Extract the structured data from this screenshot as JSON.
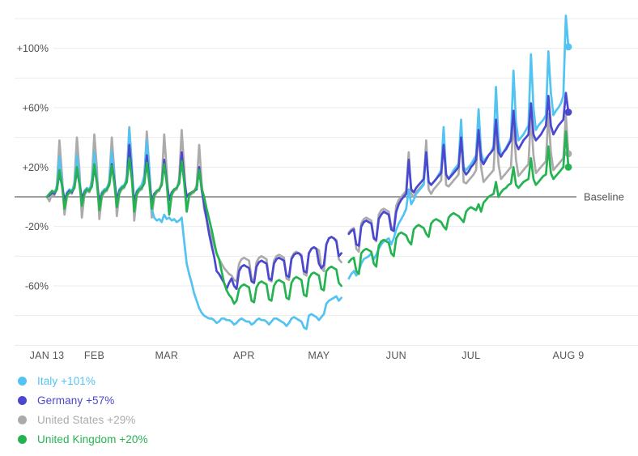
{
  "chart_data": {
    "type": "line",
    "title": "",
    "x_axis": {
      "unit": "days since Jan 13",
      "total_days": 209,
      "ticks": [
        {
          "day": 0,
          "label": "JAN 13"
        },
        {
          "day": 19,
          "label": "FEB"
        },
        {
          "day": 48,
          "label": "MAR"
        },
        {
          "day": 79,
          "label": "APR"
        },
        {
          "day": 109,
          "label": "MAY"
        },
        {
          "day": 140,
          "label": "JUN"
        },
        {
          "day": 170,
          "label": "JUL"
        },
        {
          "day": 209,
          "label": "AUG 9"
        }
      ]
    },
    "y_axis": {
      "unit": "%",
      "min": -100,
      "max": 120,
      "grid_step": 20,
      "labeled_ticks": [
        100,
        60,
        20,
        -20,
        -60
      ]
    },
    "baseline": {
      "value": 0,
      "label": "Baseline"
    },
    "grid_color": "#ebebeb",
    "baseline_color": "#9e9e9e",
    "axis_text_color": "#555555",
    "series": [
      {
        "id": "united-states",
        "name": "United States",
        "end_label": "United States +29%",
        "final_value": 29,
        "color": "#ababab",
        "values": [
          0,
          -3,
          2,
          1,
          8,
          38,
          15,
          -12,
          0,
          3,
          2,
          10,
          40,
          18,
          -14,
          1,
          4,
          3,
          12,
          42,
          20,
          -15,
          0,
          3,
          4,
          11,
          40,
          17,
          -13,
          2,
          5,
          6,
          14,
          47,
          22,
          -16,
          1,
          4,
          5,
          12,
          44,
          20,
          -14,
          0,
          3,
          4,
          10,
          42,
          18,
          -12,
          1,
          4,
          5,
          12,
          45,
          20,
          -10,
          0,
          2,
          3,
          8,
          35,
          10,
          -8,
          -15,
          -22,
          -28,
          -33,
          -38,
          -42,
          -45,
          -48,
          -50,
          -52,
          -53,
          -56,
          -57,
          -45,
          -42,
          -41,
          -42,
          -43,
          -55,
          -57,
          -44,
          -41,
          -40,
          -41,
          -42,
          -56,
          -57,
          -43,
          -40,
          -39,
          -40,
          -41,
          -55,
          -56,
          -41,
          -38,
          -37,
          -38,
          -39,
          -52,
          -53,
          -38,
          -35,
          -34,
          -35,
          -36,
          -48,
          -50,
          -32,
          -28,
          -27,
          -28,
          -29,
          -42,
          -44,
          null,
          null,
          -24,
          -22,
          -21,
          -35,
          -37,
          -18,
          -15,
          -14,
          -15,
          -16,
          -28,
          -30,
          -12,
          -9,
          -8,
          -9,
          -10,
          -20,
          -22,
          -6,
          -2,
          0,
          2,
          4,
          30,
          2,
          0,
          3,
          5,
          7,
          9,
          38,
          5,
          2,
          5,
          7,
          9,
          11,
          45,
          8,
          7,
          9,
          11,
          13,
          15,
          48,
          10,
          9,
          11,
          13,
          15,
          18,
          46,
          20,
          10,
          12,
          14,
          16,
          18,
          48,
          22,
          12,
          14,
          16,
          18,
          20,
          52,
          25,
          14,
          16,
          18,
          20,
          22,
          55,
          28,
          16,
          18,
          20,
          22,
          24,
          56,
          30,
          18,
          20,
          22,
          24,
          26,
          55,
          29
        ]
      },
      {
        "id": "italy",
        "name": "Italy",
        "end_label": "Italy +101%",
        "final_value": 101,
        "color": "#53c3f1",
        "values": [
          0,
          2,
          4,
          3,
          6,
          27,
          10,
          -4,
          3,
          5,
          4,
          8,
          28,
          12,
          -3,
          4,
          6,
          5,
          9,
          30,
          11,
          -5,
          3,
          5,
          6,
          10,
          31,
          13,
          -4,
          5,
          7,
          8,
          12,
          46,
          20,
          -6,
          4,
          6,
          8,
          14,
          38,
          20,
          -8,
          -14,
          -16,
          -15,
          -17,
          -12,
          -15,
          -14,
          -16,
          -15,
          -17,
          -16,
          -14,
          -30,
          -45,
          -52,
          -58,
          -65,
          -70,
          -75,
          -78,
          -80,
          -81,
          -82,
          -82,
          -83,
          -85,
          -84,
          -82,
          -82,
          -83,
          -83,
          -84,
          -86,
          -85,
          -83,
          -82,
          -83,
          -84,
          -84,
          -86,
          -85,
          -83,
          -82,
          -83,
          -83,
          -84,
          -86,
          -84,
          -82,
          -82,
          -83,
          -84,
          -85,
          -87,
          -85,
          -82,
          -81,
          -82,
          -83,
          -84,
          -88,
          -89,
          -80,
          -79,
          -80,
          -81,
          -83,
          -81,
          -79,
          -72,
          -70,
          -69,
          -68,
          -67,
          -70,
          -68,
          null,
          null,
          -55,
          -52,
          -50,
          -53,
          -50,
          -45,
          -42,
          -41,
          -40,
          -38,
          -42,
          -39,
          -35,
          -32,
          -30,
          -29,
          -28,
          -32,
          -28,
          -22,
          -18,
          -15,
          -12,
          -8,
          5,
          -5,
          -2,
          2,
          4,
          6,
          8,
          30,
          10,
          8,
          10,
          12,
          15,
          18,
          47,
          15,
          12,
          15,
          18,
          20,
          22,
          52,
          20,
          18,
          20,
          22,
          25,
          28,
          59,
          30,
          24,
          26,
          28,
          30,
          34,
          74,
          38,
          28,
          30,
          33,
          36,
          40,
          85,
          50,
          38,
          40,
          42,
          45,
          48,
          96,
          60,
          45,
          48,
          50,
          52,
          55,
          98,
          70,
          55,
          58,
          60,
          63,
          68,
          122,
          101
        ]
      },
      {
        "id": "germany",
        "name": "Germany",
        "end_label": "Germany +57%",
        "final_value": 57,
        "color": "#4a48ce",
        "values": [
          0,
          1,
          3,
          2,
          5,
          16,
          8,
          -2,
          2,
          4,
          3,
          6,
          18,
          9,
          -1,
          3,
          5,
          4,
          7,
          20,
          10,
          -3,
          2,
          4,
          5,
          8,
          22,
          11,
          -2,
          4,
          6,
          7,
          10,
          35,
          15,
          -4,
          3,
          5,
          6,
          9,
          28,
          12,
          -3,
          2,
          4,
          5,
          8,
          25,
          10,
          -2,
          3,
          5,
          6,
          9,
          30,
          12,
          0,
          2,
          3,
          4,
          5,
          20,
          5,
          -5,
          -15,
          -25,
          -33,
          -40,
          -50,
          -52,
          -55,
          -58,
          -62,
          -58,
          -55,
          -60,
          -62,
          -50,
          -47,
          -46,
          -47,
          -48,
          -57,
          -58,
          -47,
          -44,
          -43,
          -44,
          -45,
          -55,
          -56,
          -45,
          -42,
          -41,
          -42,
          -43,
          -53,
          -54,
          -42,
          -39,
          -38,
          -38,
          -40,
          -50,
          -51,
          -38,
          -35,
          -34,
          -35,
          -45,
          -48,
          -46,
          -32,
          -28,
          -27,
          -28,
          -30,
          -40,
          -38,
          null,
          null,
          -25,
          -23,
          -22,
          -32,
          -33,
          -20,
          -17,
          -16,
          -17,
          -18,
          -28,
          -29,
          -15,
          -12,
          -10,
          -11,
          -12,
          -22,
          -23,
          -10,
          -5,
          -2,
          0,
          2,
          25,
          5,
          3,
          6,
          8,
          10,
          12,
          30,
          10,
          8,
          10,
          12,
          14,
          16,
          35,
          15,
          12,
          14,
          16,
          18,
          20,
          40,
          18,
          15,
          17,
          20,
          22,
          25,
          45,
          25,
          22,
          25,
          28,
          30,
          32,
          52,
          30,
          27,
          30,
          32,
          35,
          38,
          58,
          36,
          32,
          35,
          38,
          40,
          42,
          63,
          42,
          38,
          40,
          42,
          45,
          48,
          68,
          48,
          42,
          45,
          48,
          50,
          52,
          70,
          57
        ]
      },
      {
        "id": "united-kingdom",
        "name": "United Kingdom",
        "end_label": "United Kingdom +20%",
        "final_value": 20,
        "color": "#25b351",
        "values": [
          0,
          2,
          4,
          3,
          5,
          18,
          8,
          -8,
          1,
          3,
          4,
          6,
          20,
          9,
          -6,
          2,
          5,
          4,
          7,
          22,
          10,
          -9,
          1,
          4,
          5,
          8,
          21,
          9,
          -7,
          3,
          6,
          7,
          10,
          26,
          12,
          -10,
          2,
          5,
          6,
          9,
          23,
          10,
          -8,
          1,
          4,
          5,
          8,
          22,
          9,
          -12,
          2,
          5,
          6,
          9,
          24,
          10,
          -10,
          1,
          3,
          4,
          6,
          18,
          6,
          0,
          -8,
          -15,
          -22,
          -30,
          -38,
          -42,
          -50,
          -58,
          -63,
          -66,
          -68,
          -72,
          -70,
          -62,
          -60,
          -59,
          -60,
          -61,
          -70,
          -71,
          -61,
          -58,
          -57,
          -58,
          -59,
          -69,
          -70,
          -60,
          -57,
          -56,
          -57,
          -58,
          -68,
          -69,
          -58,
          -55,
          -54,
          -55,
          -56,
          -66,
          -67,
          -55,
          -52,
          -51,
          -52,
          -53,
          -62,
          -63,
          -50,
          -48,
          -47,
          -48,
          -49,
          -58,
          -60,
          null,
          null,
          -44,
          -42,
          -41,
          -50,
          -52,
          -38,
          -36,
          -35,
          -36,
          -37,
          -45,
          -47,
          -33,
          -30,
          -29,
          -30,
          -31,
          -38,
          -40,
          -28,
          -25,
          -24,
          -25,
          -26,
          -30,
          -32,
          -22,
          -20,
          -19,
          -20,
          -21,
          -25,
          -27,
          -18,
          -16,
          -15,
          -16,
          -17,
          -20,
          -22,
          -14,
          -12,
          -11,
          -12,
          -13,
          -15,
          -17,
          -10,
          -8,
          -7,
          -8,
          -9,
          -5,
          -10,
          -4,
          -2,
          0,
          1,
          2,
          10,
          0,
          3,
          5,
          6,
          8,
          9,
          20,
          8,
          6,
          8,
          10,
          11,
          12,
          26,
          12,
          8,
          10,
          12,
          14,
          15,
          34,
          16,
          12,
          14,
          16,
          18,
          20,
          44,
          20
        ]
      }
    ]
  },
  "legend": {
    "items": [
      {
        "label": "Italy +101%",
        "color": "#53c3f1"
      },
      {
        "label": "Germany +57%",
        "color": "#4a48ce"
      },
      {
        "label": "United States +29%",
        "color": "#ababab"
      },
      {
        "label": "United Kingdom +20%",
        "color": "#25b351"
      }
    ]
  }
}
